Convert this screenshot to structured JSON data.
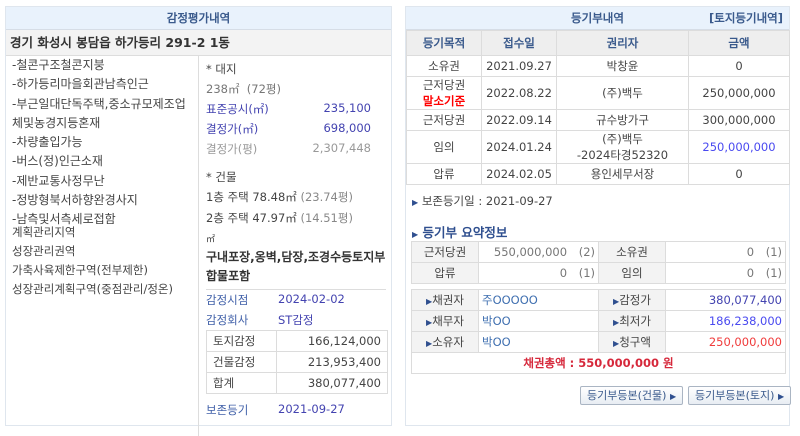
{
  "appraisal": {
    "title": "감정평가내역",
    "address": "경기 화성시 봉담읍 하가등리 291-2 1동",
    "notes": [
      "-철콘구조철콘지붕",
      "-하가등리마을회관남측인근",
      "-부근일대단독주택,중소규모제조업",
      "체및농경지등혼재",
      "-차량출입가능",
      "-버스(정)인근소재",
      "-제반교통사정무난",
      "-정방형북서하향완경사지",
      "-남측및서측세로접함"
    ],
    "zoning": [
      "계획관리지역",
      "성장관리권역",
      "가축사육제한구역(전부제한)",
      "성장관리계획구역(중점관리/정온)"
    ],
    "land_header": "* 대지",
    "land_area": "238㎡",
    "land_pyeong": "(72평)",
    "std_price_label": "표준공시(㎡)",
    "std_price": "235,100",
    "det_price_label": "결정가(㎡)",
    "det_price": "698,000",
    "det_pyeong_label": "결정가(평)",
    "det_pyeong": "2,307,448",
    "bldg_header": "* 건물",
    "floor1": "1층 주택 78.48㎡",
    "floor1_py": "(23.74평)",
    "floor2": "2층 주택 47.97㎡",
    "floor2_py": "(14.51평)",
    "unit": "㎡",
    "extra": "구내포장,옹벽,담장,조경수등토지부합물포함",
    "date_label": "감정시점",
    "date": "2024-02-02",
    "company_label": "감정회사",
    "company": "ST감정",
    "totals": [
      {
        "label": "토지감정",
        "value": "166,124,000"
      },
      {
        "label": "건물감정",
        "value": "213,953,400"
      },
      {
        "label": "합계",
        "value": "380,077,400"
      }
    ],
    "reg_label": "보존등기",
    "reg_date": "2021-09-27"
  },
  "registry": {
    "title": "등기부내역",
    "land_link": "[토지등기내역]",
    "headers": [
      "등기목적",
      "접수일",
      "권리자",
      "금액"
    ],
    "rows": [
      {
        "purpose": "소유권",
        "note": "",
        "date": "2021.09.27",
        "holder": "박창윤",
        "holder2": "",
        "amount": "0",
        "highlight": false
      },
      {
        "purpose": "근저당권",
        "note": "말소기준",
        "date": "2022.08.22",
        "holder": "(주)백두",
        "holder2": "",
        "amount": "250,000,000",
        "highlight": false
      },
      {
        "purpose": "근저당권",
        "note": "",
        "date": "2022.09.14",
        "holder": "규수방가구",
        "holder2": "",
        "amount": "300,000,000",
        "highlight": false
      },
      {
        "purpose": "임의",
        "note": "",
        "date": "2024.01.24",
        "holder": "(주)백두",
        "holder2": "-2024타경52320",
        "amount": "250,000,000",
        "highlight": true
      },
      {
        "purpose": "압류",
        "note": "",
        "date": "2024.02.05",
        "holder": "용인세무서장",
        "holder2": "",
        "amount": "0",
        "highlight": false
      }
    ],
    "preserve": "보존등기일 : 2021-09-27",
    "summary_title": "등기부 요약정보",
    "summary": [
      [
        {
          "label": "근저당권",
          "value": "550,000,000",
          "count": "(2)"
        },
        {
          "label": "소유권",
          "value": "0",
          "count": "(1)"
        }
      ],
      [
        {
          "label": "압류",
          "value": "0",
          "count": "(1)"
        },
        {
          "label": "임의",
          "value": "0",
          "count": "(1)"
        }
      ]
    ],
    "parties": [
      {
        "label": "채권자",
        "value": "주OOOOO",
        "label2": "감정가",
        "value2": "380,077,400",
        "color2": "#4343b0"
      },
      {
        "label": "채무자",
        "value": "박OO",
        "label2": "최저가",
        "value2": "186,238,000",
        "color2": "#4a4af0"
      },
      {
        "label": "소유자",
        "value": "박OO",
        "label2": "청구액",
        "value2": "250,000,000",
        "color2": "#f03c3c"
      }
    ],
    "total": "채권총액 : 550,000,000 원",
    "btn_building": "등기부등본(건물)",
    "btn_land": "등기부등본(토지)"
  }
}
